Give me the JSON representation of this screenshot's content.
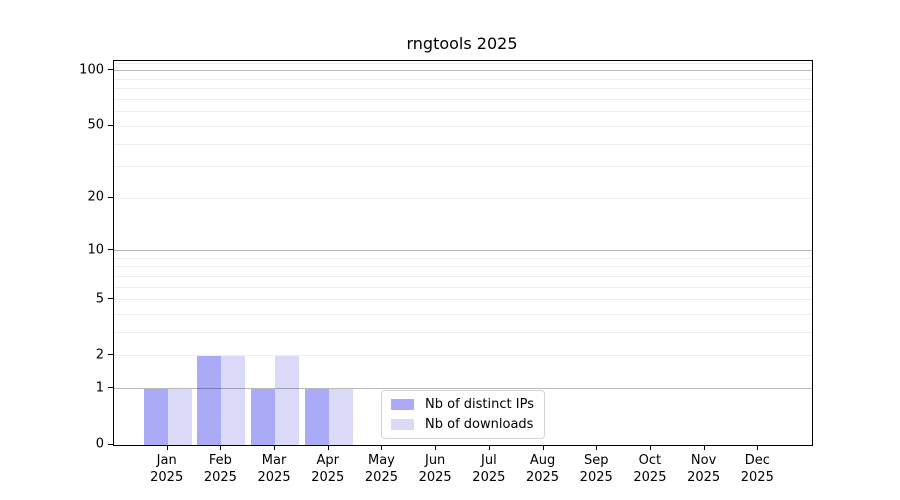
{
  "title": "rngtools 2025",
  "chart_data": {
    "type": "bar",
    "title": "rngtools 2025",
    "categories": [
      "Jan",
      "Feb",
      "Mar",
      "Apr",
      "May",
      "Jun",
      "Jul",
      "Aug",
      "Sep",
      "Oct",
      "Nov",
      "Dec"
    ],
    "x_tick_second_line": "2025",
    "series": [
      {
        "name": "Nb of distinct IPs",
        "color": "#aaaaf7",
        "values": [
          1,
          2,
          1,
          1,
          0,
          0,
          0,
          0,
          0,
          0,
          0,
          0
        ]
      },
      {
        "name": "Nb of downloads",
        "color": "#dadaf8",
        "values": [
          1,
          2,
          2,
          1,
          0,
          0,
          0,
          0,
          0,
          0,
          0,
          0
        ]
      }
    ],
    "xlabel": "",
    "ylabel": "",
    "y_scale": "log1p",
    "y_max": 113.2,
    "y_ticks": [
      0,
      1,
      2,
      5,
      10,
      20,
      50,
      100
    ],
    "grid_major_values": [
      1,
      10,
      100
    ],
    "grid_minor_values": [
      2,
      3,
      4,
      5,
      6,
      7,
      8,
      9,
      20,
      30,
      40,
      50,
      60,
      70,
      80,
      90,
      110
    ],
    "legend_position": "bottom-center",
    "legend_entries": [
      "Nb of distinct IPs",
      "Nb of downloads"
    ],
    "colors": {
      "distinct_ips_bar": "#aaaaf7",
      "downloads_bar": "#dadaf8",
      "axis": "#000000",
      "grid_major": "#bababa",
      "grid_minor": "#ededed"
    }
  }
}
